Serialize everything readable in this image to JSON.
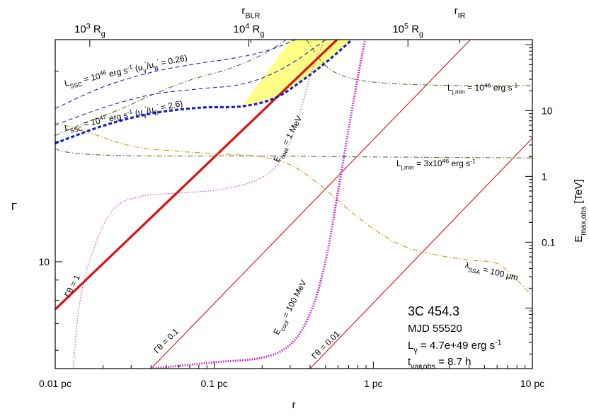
{
  "chart_data": {
    "type": "line",
    "title": "",
    "xlabel": "r",
    "ylabel": "Γ",
    "y2label": "E",
    "y2label_sub": "max,obs",
    "y2label_unit": " [TeV]",
    "x_scale": "log",
    "y_scale": "log",
    "xlim": [
      0.01,
      10
    ],
    "ylim": [
      5.4,
      36
    ],
    "y2lim": [
      0.0012,
      120
    ],
    "grid": false,
    "legend": "none",
    "x_ticks": [
      {
        "value": 0.01,
        "label": "0.01 pc"
      },
      {
        "value": 0.1,
        "label": "0.1 pc"
      },
      {
        "value": 1,
        "label": "1 pc"
      },
      {
        "value": 10,
        "label": "10 pc"
      }
    ],
    "y_ticks": [
      {
        "value": 10,
        "label": "10"
      }
    ],
    "y2_ticks": [
      {
        "value": 10,
        "label": "10"
      },
      {
        "value": 1,
        "label": "1"
      },
      {
        "value": 0.1,
        "label": "0.1"
      }
    ],
    "top_ticks": [
      {
        "value": 0.0165,
        "label": "10",
        "sup": "3",
        "unit": " R",
        "sub": "g"
      },
      {
        "value": 0.165,
        "label": "10",
        "sup": "4",
        "unit": " R",
        "sub": "g"
      },
      {
        "value": 1.65,
        "label": "10",
        "sup": "5",
        "unit": " R",
        "sub": "g"
      }
    ],
    "top_markers": [
      {
        "value": 0.17,
        "label": "r",
        "sub": "BLR"
      },
      {
        "value": 3.5,
        "label": "r",
        "sub": "IR"
      }
    ],
    "infobox": {
      "source": "3C 454.3",
      "date": "MJD 55520",
      "lum_pre": "L",
      "lum_sub": "γ",
      "lum_val": " = 4.7e+49 erg s",
      "lum_sup": "-1",
      "tvar_pre": "t",
      "tvar_sub": "var,obs",
      "tvar_val": " = 8.7 h"
    },
    "labels": {
      "lssc1": {
        "main": "L",
        "sub": "SSC",
        "eq": " = 10",
        "exp": "46",
        "unit": " erg s",
        "unit_sup": "-1",
        "ratio": "  (u",
        "r_sub1": "γ",
        "r_sup1": "'",
        "r_mid": "/u",
        "r_sub2": "B",
        "r_sup2": "'",
        "r_val": " = 0.26)"
      },
      "lssc2": {
        "main": "L",
        "sub": "SSC",
        "eq": " = 10",
        "exp": "47",
        "unit": " erg s",
        "unit_sup": "-1",
        "ratio": "  (u",
        "r_sub1": "γ",
        "r_sup1": "'",
        "r_mid": "/u",
        "r_sub2": "B",
        "r_sup2": "'",
        "r_val": " = 2.6)"
      },
      "ljmin1": {
        "main": "L",
        "sub": "j,min",
        "eq": " = 10",
        "exp": "46",
        "unit": " erg s",
        "unit_sup": "-1"
      },
      "ljmin2": {
        "main": "L",
        "sub": "j,min",
        "eq": " = 3x10",
        "exp": "46",
        "unit": " erg s",
        "unit_sup": "-1"
      },
      "ecool1": {
        "main": "E",
        "sub": "cool",
        "val": " = 1 MeV"
      },
      "ecool2": {
        "main": "E",
        "sub": "cool",
        "val": " = 100 MeV"
      },
      "lambda": {
        "main": "λ",
        "sub": "SSA",
        "val": " = 100 μm"
      },
      "gt1": "Γθ = 1",
      "gt01": "Γθ = 0.1",
      "gt001": "Γθ = 0.01"
    },
    "series": [
      {
        "id": "gt1",
        "style": "red-thick",
        "color": "#dd1111",
        "points": [
          [
            0.01,
            7.6
          ],
          [
            0.78,
            40
          ]
        ]
      },
      {
        "id": "gt01",
        "style": "red-thin",
        "color": "#dd1111",
        "points": [
          [
            0.04,
            5.4
          ],
          [
            10,
            52
          ]
        ]
      },
      {
        "id": "gt001",
        "style": "red-thin",
        "color": "#dd1111",
        "points": [
          [
            0.4,
            5.4
          ],
          [
            10,
            20.4
          ]
        ]
      },
      {
        "id": "lssc1",
        "style": "blue-dash",
        "color": "#1a22cc",
        "points": [
          [
            0.01,
            24.2
          ],
          [
            0.02,
            27.4
          ],
          [
            0.04,
            29.8
          ],
          [
            0.08,
            31.4
          ],
          [
            0.13,
            32.3
          ],
          [
            0.2,
            33.5
          ],
          [
            0.3,
            35.5
          ],
          [
            0.42,
            38
          ]
        ]
      },
      {
        "id": "lssc1b",
        "style": "blue-dash",
        "color": "#1a22cc",
        "points": [
          [
            0.01,
            22.0
          ],
          [
            0.02,
            24.3
          ],
          [
            0.04,
            26.2
          ],
          [
            0.08,
            27.1
          ],
          [
            0.14,
            27.7
          ],
          [
            0.22,
            29.3
          ],
          [
            0.33,
            32.0
          ],
          [
            0.5,
            36.0
          ]
        ]
      },
      {
        "id": "lssc2",
        "style": "blue-thick-dash",
        "color": "#1a22cc",
        "points": [
          [
            0.01,
            19.8
          ],
          [
            0.02,
            21.9
          ],
          [
            0.04,
            23.5
          ],
          [
            0.08,
            24.3
          ],
          [
            0.15,
            24.5
          ],
          [
            0.24,
            25.7
          ],
          [
            0.36,
            28.5
          ],
          [
            0.55,
            32.5
          ],
          [
            0.82,
            37.5
          ]
        ]
      },
      {
        "id": "ljmin1",
        "style": "green-dashdot",
        "color": "#4a7a2a",
        "points": [
          [
            0.01,
            20.7
          ],
          [
            0.015,
            22.2
          ],
          [
            0.025,
            24.0
          ],
          [
            0.04,
            26.1
          ],
          [
            0.07,
            28.5
          ],
          [
            0.12,
            30.3
          ],
          [
            0.2,
            33.0
          ],
          [
            0.3,
            36.5
          ]
        ]
      },
      {
        "id": "ljmin1b",
        "style": "green-dashdot",
        "color": "#4a7a2a",
        "points": [
          [
            0.38,
            36.0
          ],
          [
            0.5,
            31.0
          ],
          [
            0.7,
            28.9
          ],
          [
            1.2,
            28.0
          ],
          [
            3,
            27.65
          ],
          [
            10,
            27.6
          ]
        ]
      },
      {
        "id": "ljmin2",
        "style": "green-dashdot",
        "color": "#4a7a2a",
        "points": [
          [
            0.01,
            19.2
          ],
          [
            0.012,
            18.8
          ],
          [
            0.02,
            18.5
          ],
          [
            0.05,
            18.4
          ],
          [
            0.2,
            18.4
          ],
          [
            1,
            18.3
          ],
          [
            10,
            18.2
          ]
        ]
      },
      {
        "id": "lambda",
        "style": "orange-dashdot",
        "color": "#d99a20",
        "points": [
          [
            0.01,
            22.3
          ],
          [
            0.015,
            21.3
          ],
          [
            0.03,
            19.5
          ],
          [
            0.06,
            18.9
          ],
          [
            0.12,
            18.6
          ],
          [
            0.2,
            18.3
          ],
          [
            0.3,
            17.5
          ],
          [
            0.45,
            15.7
          ],
          [
            0.7,
            13.5
          ],
          [
            1.0,
            12.1
          ],
          [
            1.5,
            11.0
          ],
          [
            2.5,
            10.4
          ],
          [
            4,
            10.1
          ],
          [
            6,
            9.9
          ],
          [
            8,
            9.0
          ],
          [
            10,
            8.2
          ]
        ]
      },
      {
        "id": "ecool1",
        "style": "magenta-dot",
        "color": "#dd22dd",
        "points": [
          [
            0.013,
            5.4
          ],
          [
            0.014,
            7.5
          ],
          [
            0.016,
            9.7
          ],
          [
            0.02,
            12.3
          ],
          [
            0.025,
            13.9
          ],
          [
            0.035,
            14.6
          ],
          [
            0.05,
            14.8
          ],
          [
            0.1,
            15.1
          ],
          [
            0.17,
            15.8
          ],
          [
            0.24,
            17.2
          ],
          [
            0.3,
            20.0
          ],
          [
            0.36,
            25.0
          ],
          [
            0.42,
            31.0
          ],
          [
            0.5,
            36.0
          ]
        ]
      },
      {
        "id": "ecool2",
        "style": "magenta-thick-dot",
        "color": "#cc22cc",
        "points": [
          [
            0.04,
            5.4
          ],
          [
            0.1,
            5.6
          ],
          [
            0.2,
            5.75
          ],
          [
            0.3,
            6.2
          ],
          [
            0.4,
            7.4
          ],
          [
            0.5,
            10.0
          ],
          [
            0.6,
            15.0
          ],
          [
            0.72,
            23.0
          ],
          [
            0.85,
            33.0
          ],
          [
            0.92,
            38.0
          ]
        ]
      }
    ],
    "band": {
      "color": "#ffff88",
      "lower": [
        [
          0.15,
          24.6
        ],
        [
          0.24,
          25.7
        ],
        [
          0.36,
          28.5
        ],
        [
          0.55,
          32.5
        ],
        [
          0.75,
          36.5
        ]
      ],
      "upper_gt1_to": [
        0.32,
        37.0
      ],
      "upper": [
        [
          0.42,
          38.0
        ],
        [
          0.5,
          37.5
        ],
        [
          0.62,
          37.2
        ],
        [
          0.75,
          36.5
        ]
      ]
    }
  }
}
